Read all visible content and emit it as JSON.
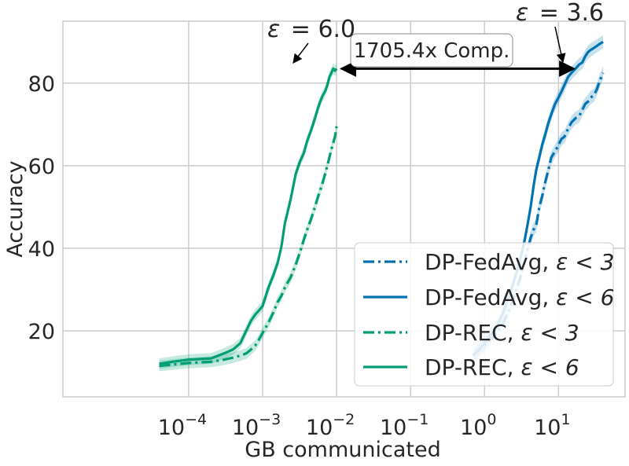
{
  "chart_data": {
    "type": "line",
    "xscale": "log",
    "xlabel": "GB communicated",
    "ylabel": "Accuracy",
    "xlim_log10": [
      -5.7,
      1.9
    ],
    "ylim": [
      4,
      95
    ],
    "x_ticks": [
      {
        "base": "10",
        "exp": "−4",
        "value": 0.0001
      },
      {
        "base": "10",
        "exp": "−3",
        "value": 0.001
      },
      {
        "base": "10",
        "exp": "−2",
        "value": 0.01
      },
      {
        "base": "10",
        "exp": "−1",
        "value": 0.1
      },
      {
        "base": "10",
        "exp": "0",
        "value": 1
      },
      {
        "base": "10",
        "exp": "1",
        "value": 10
      }
    ],
    "y_ticks": [
      20,
      40,
      60,
      80
    ],
    "legend_position": "bottom-right",
    "colors": {
      "fedavg": "#0173b2",
      "rec": "#029e73",
      "grid": "#cccccc",
      "frame": "#cccccc"
    },
    "series": [
      {
        "name": "DP-FedAvg, ε < 3",
        "label_prefix": "DP-FedAvg, ",
        "label_eps": "ε < 3",
        "color": "#0173b2",
        "style": "dashdot",
        "band": 1.6,
        "x": [
          0.7,
          1.0,
          1.4,
          1.8,
          2.2,
          2.6,
          3.0,
          3.4,
          3.8,
          4.2,
          4.6,
          5.0,
          5.5,
          6.0,
          6.6,
          7.2,
          8.0,
          9.0,
          10.0,
          11.0,
          12.0,
          13.5,
          15.0,
          17.0,
          19.0,
          21.0,
          23.0,
          25.0,
          27.0,
          30.0,
          33.0,
          36.0,
          40.0
        ],
        "y": [
          14.0,
          16.5,
          19.0,
          22.0,
          25.5,
          29.0,
          32.5,
          36.0,
          39.5,
          42.5,
          44.5,
          45.5,
          50.0,
          52.5,
          56.0,
          58.5,
          62.0,
          63.5,
          65.0,
          66.5,
          67.0,
          69.0,
          70.5,
          71.5,
          72.0,
          73.5,
          75.0,
          75.5,
          76.5,
          77.0,
          78.5,
          80.5,
          82.5
        ]
      },
      {
        "name": "DP-FedAvg, ε < 6",
        "label_prefix": "DP-FedAvg, ",
        "label_eps": "ε < 6",
        "color": "#0173b2",
        "style": "solid",
        "band": 1.6,
        "x": [
          0.7,
          1.0,
          1.4,
          1.8,
          2.2,
          2.6,
          3.0,
          3.4,
          3.8,
          4.2,
          4.6,
          5.0,
          5.5,
          6.0,
          6.6,
          7.2,
          8.0,
          9.0,
          10.0,
          11.0,
          12.0,
          13.5,
          15.0,
          17.0,
          19.0,
          21.0,
          23.0,
          25.0,
          27.0,
          30.0,
          33.0,
          36.0,
          40.0
        ],
        "y": [
          14.0,
          17.0,
          20.5,
          24.5,
          29.0,
          33.0,
          37.0,
          41.0,
          45.5,
          50.0,
          55.0,
          59.0,
          62.0,
          65.0,
          67.5,
          70.0,
          72.5,
          75.0,
          76.5,
          78.0,
          79.5,
          81.5,
          82.5,
          83.5,
          84.5,
          85.0,
          86.5,
          87.5,
          88.0,
          88.5,
          89.0,
          89.5,
          90.0
        ]
      },
      {
        "name": "DP-REC, ε < 3",
        "label_prefix": "DP-REC, ",
        "label_eps": "ε < 3",
        "color": "#029e73",
        "style": "dashdot",
        "band": 1.3,
        "x": [
          4e-05,
          6e-05,
          0.0001,
          0.0002,
          0.0003,
          0.0004,
          0.0005,
          0.0006,
          0.0007,
          0.0008,
          0.0009,
          0.001,
          0.0012,
          0.0014,
          0.0016,
          0.0018,
          0.002,
          0.0024,
          0.0028,
          0.0032,
          0.0036,
          0.004,
          0.0045,
          0.005,
          0.0055,
          0.006,
          0.0065,
          0.007,
          0.0075,
          0.008,
          0.0085,
          0.009,
          0.0095,
          0.01
        ],
        "y": [
          11.5,
          11.8,
          12.2,
          12.5,
          13.0,
          13.5,
          14.0,
          14.5,
          15.5,
          16.5,
          18.0,
          19.5,
          22.0,
          24.5,
          27.0,
          28.5,
          30.5,
          33.0,
          36.0,
          39.0,
          42.0,
          44.5,
          47.0,
          49.5,
          52.0,
          54.0,
          56.0,
          58.0,
          60.0,
          62.0,
          64.0,
          65.5,
          67.0,
          69.5
        ]
      },
      {
        "name": "DP-REC, ε < 6",
        "label_prefix": "DP-REC, ",
        "label_eps": "ε < 6",
        "color": "#029e73",
        "style": "solid",
        "band": 1.3,
        "x": [
          4e-05,
          6e-05,
          0.0001,
          0.0002,
          0.0003,
          0.0004,
          0.0005,
          0.0006,
          0.0007,
          0.0008,
          0.0009,
          0.001,
          0.0012,
          0.0014,
          0.0016,
          0.0018,
          0.002,
          0.0024,
          0.0028,
          0.0032,
          0.0036,
          0.004,
          0.0045,
          0.005,
          0.0055,
          0.006,
          0.0065,
          0.007,
          0.0075,
          0.008,
          0.0085,
          0.009,
          0.0095,
          0.01
        ],
        "y": [
          12.0,
          12.5,
          13.0,
          13.3,
          14.5,
          15.5,
          17.0,
          20.0,
          22.5,
          24.0,
          25.0,
          26.0,
          30.5,
          33.5,
          36.5,
          40.5,
          46.0,
          52.0,
          58.0,
          61.0,
          63.0,
          66.0,
          68.5,
          71.0,
          73.5,
          75.5,
          77.0,
          78.0,
          79.5,
          81.5,
          82.5,
          83.5,
          83.0,
          83.5
        ]
      }
    ],
    "annotations": {
      "left": {
        "prefix": "ε",
        "value": "= 6.0",
        "arrow_to": {
          "x": 0.0105,
          "y": 83.5
        }
      },
      "right": {
        "prefix": "ε",
        "value": "= 3.6",
        "arrow_to": {
          "x": 17.0,
          "y": 83.5
        }
      },
      "compression": {
        "label": "1705.4x Comp.",
        "y": 83.5,
        "x_from": 0.0105,
        "x_to": 17.0
      }
    }
  }
}
